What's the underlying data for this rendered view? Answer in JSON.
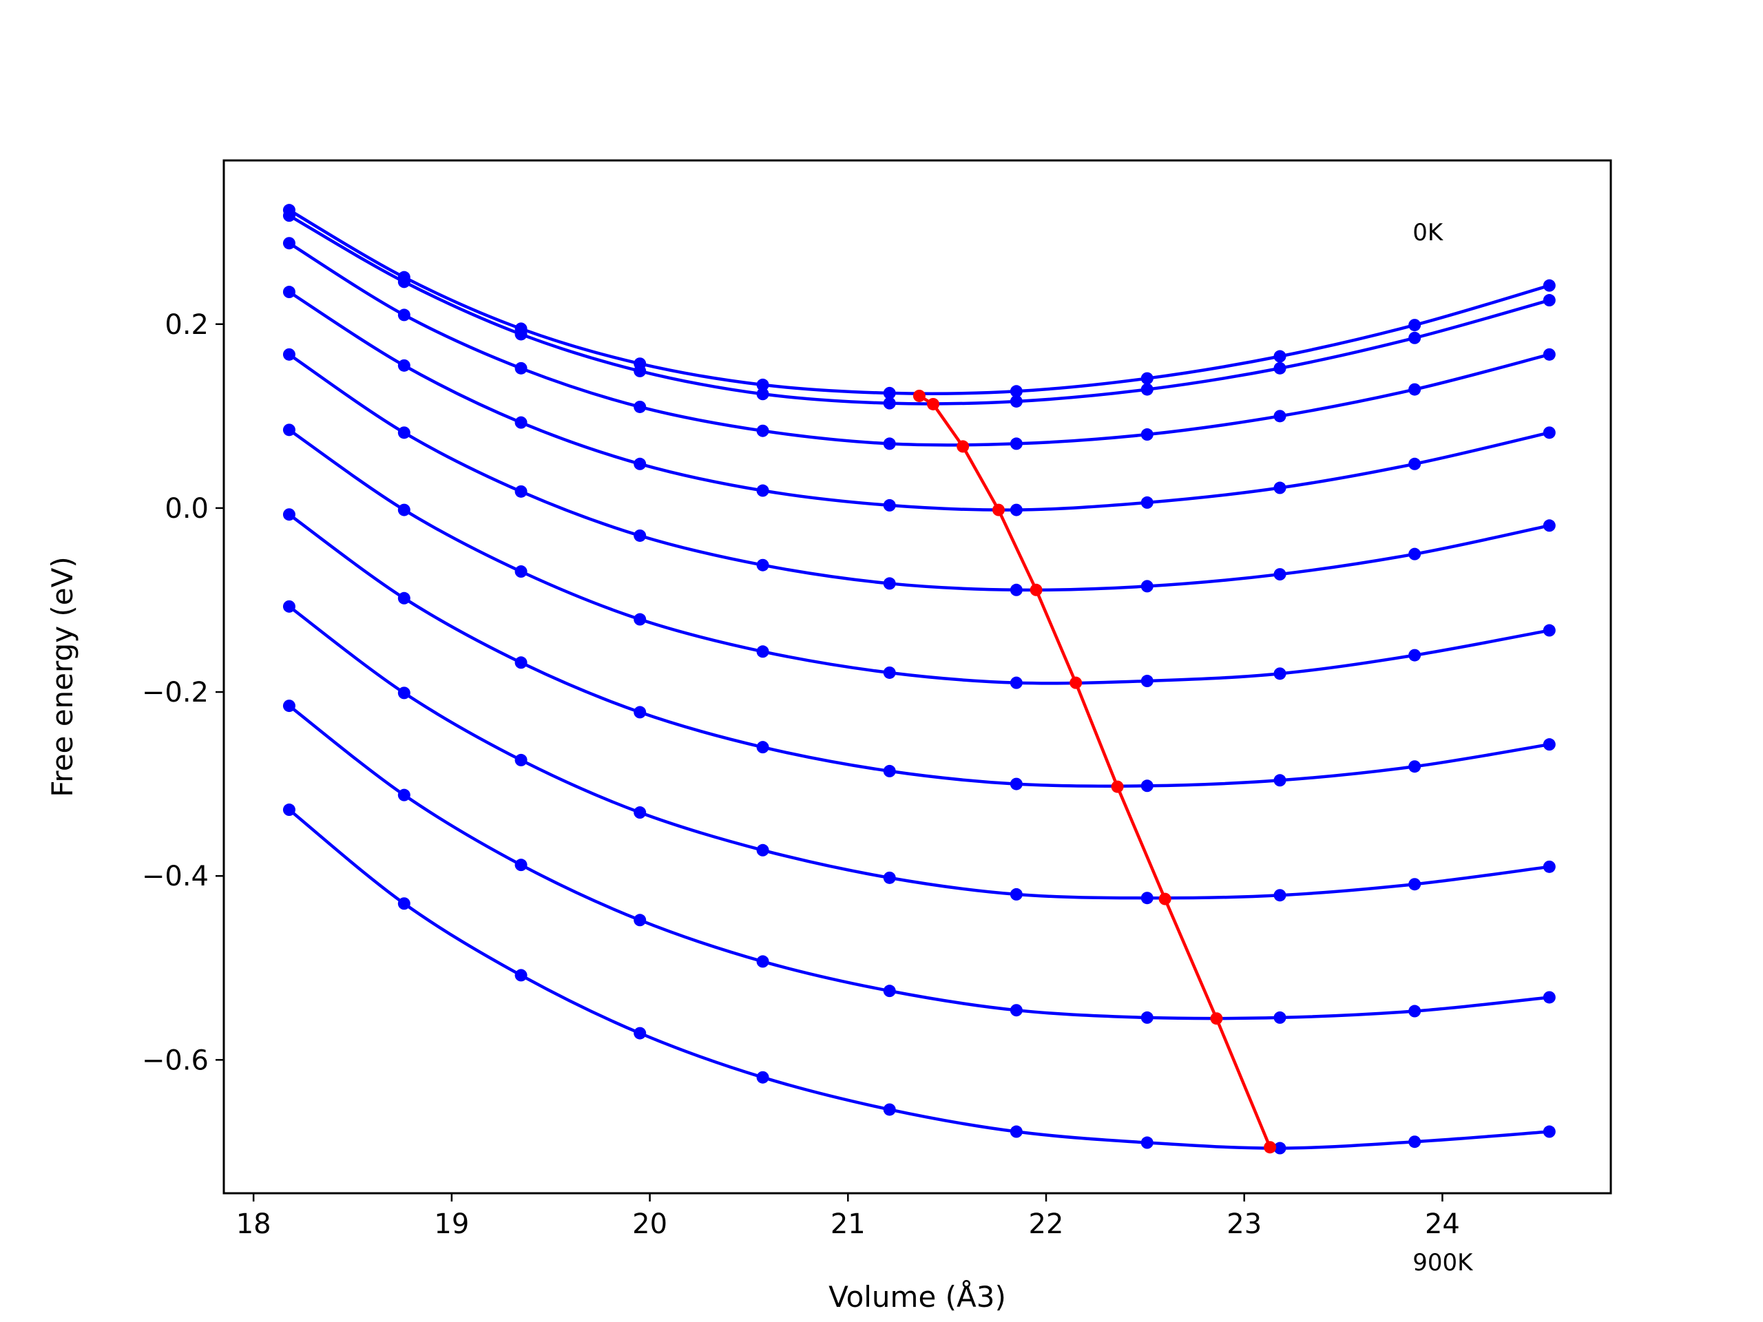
{
  "chart_data": {
    "type": "line",
    "xlabel": "Volume (Å3)",
    "ylabel": "Free energy (eV)",
    "xlim": [
      17.85,
      24.85
    ],
    "ylim": [
      -0.745,
      0.378
    ],
    "xticks": [
      "18",
      "19",
      "20",
      "21",
      "22",
      "23",
      "24"
    ],
    "yticks": [
      "0.2",
      "0.0",
      "−0.2",
      "−0.4",
      "−0.6"
    ],
    "annotations": [
      {
        "text": "0K",
        "x": 23.85,
        "y": 0.3
      },
      {
        "text": "900K",
        "x": 23.85,
        "y": -0.82
      }
    ],
    "x": [
      18.18,
      18.76,
      19.35,
      19.95,
      20.57,
      21.21,
      21.85,
      22.51,
      23.18,
      23.86,
      24.54
    ],
    "series_color": "#0000ff",
    "series": [
      {
        "values": [
          0.324,
          0.251,
          0.195,
          0.157,
          0.134,
          0.125,
          0.127,
          0.141,
          0.165,
          0.199,
          0.242
        ]
      },
      {
        "values": [
          0.318,
          0.246,
          0.189,
          0.149,
          0.124,
          0.114,
          0.116,
          0.129,
          0.152,
          0.185,
          0.226
        ]
      },
      {
        "values": [
          0.288,
          0.21,
          0.152,
          0.11,
          0.084,
          0.07,
          0.07,
          0.08,
          0.1,
          0.129,
          0.167
        ]
      },
      {
        "values": [
          0.235,
          0.155,
          0.093,
          0.048,
          0.019,
          0.003,
          -0.002,
          0.006,
          0.022,
          0.048,
          0.082
        ]
      },
      {
        "values": [
          0.167,
          0.082,
          0.018,
          -0.03,
          -0.062,
          -0.082,
          -0.089,
          -0.085,
          -0.072,
          -0.05,
          -0.019
        ]
      },
      {
        "values": [
          0.085,
          -0.002,
          -0.069,
          -0.121,
          -0.156,
          -0.179,
          -0.19,
          -0.188,
          -0.18,
          -0.16,
          -0.133
        ]
      },
      {
        "values": [
          -0.007,
          -0.098,
          -0.168,
          -0.222,
          -0.26,
          -0.286,
          -0.3,
          -0.302,
          -0.296,
          -0.281,
          -0.257
        ]
      },
      {
        "values": [
          -0.107,
          -0.201,
          -0.274,
          -0.331,
          -0.372,
          -0.402,
          -0.42,
          -0.424,
          -0.421,
          -0.409,
          -0.39
        ]
      },
      {
        "values": [
          -0.215,
          -0.312,
          -0.388,
          -0.448,
          -0.493,
          -0.525,
          -0.546,
          -0.554,
          -0.554,
          -0.547,
          -0.532
        ]
      },
      {
        "values": [
          -0.328,
          -0.43,
          -0.508,
          -0.571,
          -0.619,
          -0.654,
          -0.678,
          -0.69,
          -0.696,
          -0.689,
          -0.678
        ]
      }
    ],
    "minima_color": "#ff0000",
    "minima": {
      "x": [
        21.36,
        21.43,
        21.58,
        21.76,
        21.95,
        22.15,
        22.36,
        22.6,
        22.86,
        23.13
      ],
      "y": [
        0.122,
        0.113,
        0.067,
        -0.002,
        -0.089,
        -0.19,
        -0.303,
        -0.425,
        -0.555,
        -0.695
      ]
    }
  }
}
